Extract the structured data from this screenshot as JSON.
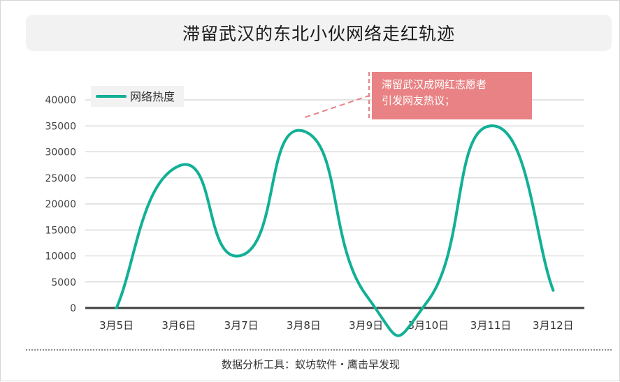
{
  "title": "滞留武汉的东北小伙网络走红轨迹",
  "footer": "数据分析工具：蚁坊软件・鹰击早发现",
  "annotation": {
    "line1": "滞留武汉成网红志愿者",
    "line2": "引发网友热议；",
    "target_category": "3月8日",
    "color": "#e98284"
  },
  "chart_data": {
    "type": "line",
    "categories": [
      "3月5日",
      "3月6日",
      "3月7日",
      "3月8日",
      "3月9日",
      "3月10日",
      "3月11日",
      "3月12日"
    ],
    "series": [
      {
        "name": "网络热度",
        "color": "#12b095",
        "smooth": true,
        "values": [
          0,
          27300,
          10100,
          34000,
          2500,
          1500,
          35000,
          3400
        ]
      }
    ],
    "yticks": [
      0,
      5000,
      10000,
      15000,
      20000,
      25000,
      30000,
      35000,
      40000
    ],
    "ylim": [
      0,
      40000
    ],
    "grid": true,
    "legend": "top-left"
  }
}
